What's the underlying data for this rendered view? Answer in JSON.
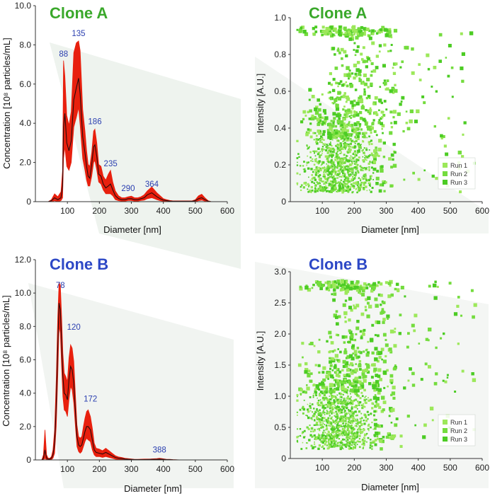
{
  "colors": {
    "clone_a_title": "#3aa82b",
    "clone_b_title": "#2d48c6",
    "band": "#e8200e",
    "mean_line": "#2a0a0a",
    "peak_label": "#2b3fb0",
    "run1": "#9ce85a",
    "run2": "#74dc3e",
    "run3": "#4ccc24",
    "background_shadow": "#eef3ee"
  },
  "chart_data": [
    {
      "id": "clone_a_size",
      "type": "area",
      "title": "Clone A",
      "xlabel": "Diameter [nm]",
      "ylabel": "Concentration [10⁸ particles/mL]",
      "xlim": [
        0,
        600
      ],
      "ylim": [
        0,
        10
      ],
      "xticks": [
        "100",
        "200",
        "300",
        "400",
        "500",
        "600"
      ],
      "yticks": [
        "0",
        "2.0",
        "4.0",
        "6.0",
        "8.0",
        "10.0"
      ],
      "x": [
        40,
        50,
        60,
        70,
        80,
        85,
        88,
        92,
        98,
        105,
        112,
        120,
        128,
        135,
        140,
        148,
        155,
        160,
        165,
        170,
        176,
        182,
        186,
        192,
        198,
        205,
        212,
        220,
        228,
        235,
        242,
        250,
        260,
        270,
        280,
        290,
        300,
        310,
        320,
        330,
        340,
        350,
        364,
        372,
        380,
        390,
        400,
        410,
        420,
        430,
        440,
        450,
        460,
        470,
        480,
        490,
        500,
        510,
        520,
        530,
        540,
        550
      ],
      "mean": [
        0,
        0.05,
        0.2,
        0.1,
        0.2,
        0.8,
        3.8,
        4.5,
        3.0,
        2.6,
        3.1,
        5.2,
        5.8,
        6.3,
        5.5,
        3.3,
        2.5,
        1.8,
        1.3,
        1.2,
        1.9,
        2.8,
        2.9,
        2.3,
        1.4,
        1.3,
        0.9,
        0.7,
        0.8,
        0.9,
        0.6,
        0.3,
        0.15,
        0.1,
        0.1,
        0.15,
        0.15,
        0.1,
        0.1,
        0.15,
        0.2,
        0.35,
        0.45,
        0.35,
        0.25,
        0.15,
        0.08,
        0.05,
        0.03,
        0.02,
        0.02,
        0.02,
        0.02,
        0.02,
        0.02,
        0.02,
        0.05,
        0.15,
        0.2,
        0.1,
        0.02,
        0
      ],
      "upper": [
        0,
        0.1,
        0.4,
        0.25,
        0.5,
        1.6,
        7.2,
        6.4,
        4.4,
        3.9,
        4.6,
        7.6,
        8.1,
        8.2,
        7.7,
        4.7,
        3.6,
        2.6,
        1.9,
        1.8,
        2.5,
        3.6,
        3.7,
        3.0,
        1.9,
        1.8,
        1.3,
        1.1,
        1.4,
        1.6,
        1.0,
        0.55,
        0.3,
        0.2,
        0.2,
        0.25,
        0.28,
        0.2,
        0.2,
        0.25,
        0.35,
        0.55,
        0.75,
        0.6,
        0.45,
        0.3,
        0.15,
        0.1,
        0.06,
        0.04,
        0.04,
        0.04,
        0.04,
        0.04,
        0.04,
        0.04,
        0.1,
        0.3,
        0.38,
        0.2,
        0.05,
        0
      ],
      "lower": [
        0,
        0,
        0.05,
        0,
        0.05,
        0.2,
        2.2,
        2.8,
        1.8,
        1.6,
        2.0,
        3.8,
        4.3,
        4.8,
        3.9,
        2.2,
        1.6,
        1.1,
        0.8,
        0.8,
        1.3,
        2.0,
        2.1,
        1.6,
        1.0,
        0.9,
        0.6,
        0.4,
        0.4,
        0.4,
        0.3,
        0.1,
        0.05,
        0.03,
        0.03,
        0.06,
        0.06,
        0.03,
        0.03,
        0.06,
        0.08,
        0.15,
        0.2,
        0.15,
        0.1,
        0.05,
        0.02,
        0.01,
        0,
        0,
        0,
        0,
        0,
        0,
        0,
        0,
        0.01,
        0.05,
        0.08,
        0.03,
        0,
        0
      ],
      "peak_labels": [
        {
          "label": "88",
          "x": 88,
          "y": 7.4
        },
        {
          "label": "135",
          "x": 135,
          "y": 8.45
        },
        {
          "label": "186",
          "x": 186,
          "y": 3.95
        },
        {
          "label": "235",
          "x": 235,
          "y": 1.8
        },
        {
          "label": "290",
          "x": 290,
          "y": 0.55
        },
        {
          "label": "364",
          "x": 364,
          "y": 0.75
        }
      ]
    },
    {
      "id": "clone_a_intensity",
      "type": "scatter",
      "title": "Clone A",
      "xlabel": "Diameter [nm]",
      "ylabel": "Intensity [A.U.]",
      "xlim": [
        0,
        600
      ],
      "ylim": [
        0,
        1.0
      ],
      "xticks": [
        "100",
        "200",
        "300",
        "400",
        "500",
        "600"
      ],
      "yticks": [
        "0",
        "0.2",
        "0.4",
        "0.6",
        "0.8",
        "1.0"
      ],
      "legend": [
        "Run 1",
        "Run 2",
        "Run 3"
      ],
      "legend_position": "bottom-right",
      "point_count": 1500
    },
    {
      "id": "clone_b_size",
      "type": "area",
      "title": "Clone B",
      "xlabel": "Diameter [nm]",
      "ylabel": "Concentration [10⁸ particles/mL]",
      "xlim": [
        0,
        600
      ],
      "ylim": [
        0,
        12
      ],
      "xticks": [
        "100",
        "200",
        "300",
        "400",
        "500",
        "600"
      ],
      "yticks": [
        "0",
        "2.0",
        "4.0",
        "6.0",
        "8.0",
        "10.0",
        "12.0"
      ],
      "x": [
        20,
        25,
        30,
        35,
        40,
        45,
        50,
        55,
        60,
        65,
        70,
        74,
        78,
        82,
        86,
        90,
        95,
        100,
        105,
        110,
        115,
        120,
        125,
        130,
        135,
        140,
        145,
        150,
        155,
        160,
        165,
        172,
        178,
        184,
        190,
        200,
        210,
        220,
        230,
        240,
        250,
        260,
        270,
        280,
        290,
        300,
        310,
        320,
        340,
        360,
        380,
        388,
        396,
        410,
        420,
        430,
        450,
        480,
        500,
        550
      ],
      "mean": [
        0,
        0.1,
        0.6,
        0.1,
        0.05,
        0.05,
        0.1,
        0.3,
        1.0,
        3.2,
        6.8,
        9.4,
        9.0,
        7.0,
        5.0,
        4.0,
        3.9,
        3.6,
        4.8,
        5.6,
        5.4,
        4.6,
        2.9,
        1.4,
        0.9,
        0.8,
        0.9,
        1.3,
        1.7,
        2.0,
        2.0,
        1.8,
        1.2,
        0.6,
        0.45,
        0.4,
        0.35,
        0.45,
        0.35,
        0.25,
        0.15,
        0.1,
        0.08,
        0.05,
        0.04,
        0.03,
        0.02,
        0.02,
        0.02,
        0.03,
        0.04,
        0.05,
        0.04,
        0.02,
        0.02,
        0.01,
        0,
        0,
        0,
        0
      ],
      "upper": [
        0,
        0.3,
        1.8,
        0.3,
        0.1,
        0.1,
        0.2,
        0.6,
        1.8,
        4.8,
        8.6,
        10.6,
        10.5,
        8.6,
        6.4,
        5.2,
        5.0,
        4.7,
        6.1,
        6.9,
        6.7,
        5.9,
        3.9,
        2.1,
        1.4,
        1.3,
        1.4,
        2.0,
        2.5,
        2.9,
        3.0,
        2.6,
        1.9,
        1.0,
        0.7,
        0.65,
        0.55,
        0.7,
        0.55,
        0.4,
        0.25,
        0.18,
        0.15,
        0.1,
        0.08,
        0.06,
        0.04,
        0.04,
        0.05,
        0.06,
        0.08,
        0.1,
        0.08,
        0.04,
        0.04,
        0.02,
        0,
        0,
        0,
        0
      ],
      "lower": [
        0,
        0,
        0.1,
        0,
        0,
        0,
        0.02,
        0.1,
        0.4,
        2.0,
        5.0,
        8.0,
        7.6,
        5.6,
        3.8,
        3.0,
        2.9,
        2.6,
        3.6,
        4.4,
        4.2,
        3.4,
        2.0,
        0.8,
        0.5,
        0.4,
        0.5,
        0.8,
        1.1,
        1.3,
        1.2,
        1.1,
        0.6,
        0.3,
        0.2,
        0.2,
        0.15,
        0.2,
        0.15,
        0.1,
        0.05,
        0.03,
        0.02,
        0.01,
        0.01,
        0.01,
        0,
        0,
        0,
        0.01,
        0.01,
        0.02,
        0.01,
        0,
        0,
        0,
        0,
        0,
        0,
        0
      ],
      "peak_labels": [
        {
          "label": "78",
          "x": 78,
          "y": 10.3
        },
        {
          "label": "120",
          "x": 120,
          "y": 7.8
        },
        {
          "label": "172",
          "x": 172,
          "y": 3.5
        },
        {
          "label": "388",
          "x": 388,
          "y": 0.45
        }
      ]
    },
    {
      "id": "clone_b_intensity",
      "type": "scatter",
      "title": "Clone B",
      "xlabel": "Diameter [nm]",
      "ylabel": "Intensity [A.U.]",
      "xlim": [
        0,
        600
      ],
      "ylim": [
        0,
        3.0
      ],
      "xticks": [
        "100",
        "200",
        "300",
        "400",
        "500",
        "600"
      ],
      "yticks": [
        "0",
        "0.5",
        "1.0",
        "1.5",
        "2.0",
        "2.5",
        "3.0"
      ],
      "legend": [
        "Run 1",
        "Run 2",
        "Run 3"
      ],
      "legend_position": "bottom-right",
      "point_count": 1500
    }
  ]
}
